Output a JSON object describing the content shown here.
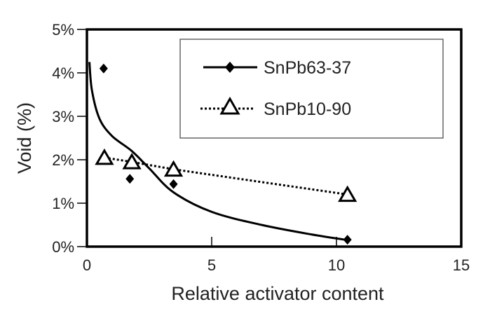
{
  "chart_data": {
    "type": "scatter",
    "title": "",
    "xlabel": "Relative activator content",
    "ylabel": "Void (%)",
    "xlim": [
      0,
      15
    ],
    "ylim": [
      0,
      5
    ],
    "xticks": [
      0,
      5,
      10,
      15
    ],
    "xtick_labels": [
      "0",
      "5",
      "10",
      "15"
    ],
    "yticks": [
      0,
      1,
      2,
      3,
      4,
      5
    ],
    "ytick_labels": [
      "0%",
      "1%",
      "2%",
      "3%",
      "4%",
      "5%"
    ],
    "grid": false,
    "legend_position": "top-right",
    "series": [
      {
        "name": "SnPb63-37",
        "marker": "filled-diamond",
        "line": "solid fitted curve",
        "color": "#000000",
        "points": [
          [
            0.67,
            4.1
          ],
          [
            1.72,
            1.56
          ],
          [
            3.47,
            1.44
          ],
          [
            10.44,
            0.16
          ]
        ],
        "curve": [
          [
            0.1,
            4.25
          ],
          [
            0.2,
            3.6
          ],
          [
            0.5,
            2.95
          ],
          [
            1.0,
            2.55
          ],
          [
            1.8,
            2.2
          ],
          [
            2.5,
            1.8
          ],
          [
            3.47,
            1.25
          ],
          [
            5.0,
            0.8
          ],
          [
            7.0,
            0.5
          ],
          [
            9.0,
            0.28
          ],
          [
            10.44,
            0.15
          ]
        ]
      },
      {
        "name": "SnPb10-90",
        "marker": "open-triangle",
        "line": "dotted",
        "color": "#000000",
        "points": [
          [
            0.7,
            2.05
          ],
          [
            1.8,
            1.95
          ],
          [
            3.47,
            1.78
          ],
          [
            10.44,
            1.2
          ]
        ]
      }
    ]
  }
}
